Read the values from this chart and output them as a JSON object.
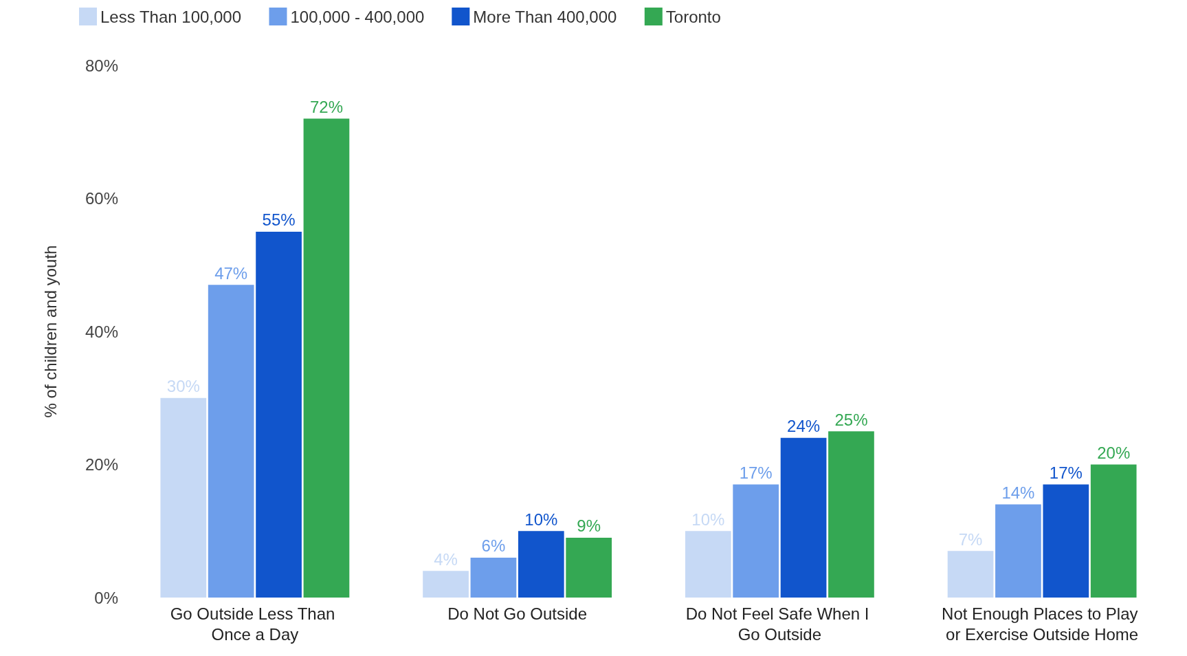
{
  "chart_data": {
    "type": "bar",
    "ylabel": "% of children and youth",
    "categories": [
      "Go Outside Less Than Once a Day",
      "Do Not Go Outside",
      "Do Not Feel Safe When I Go Outside",
      "Not Enough Places to Play or Exercise Outside Home"
    ],
    "series": [
      {
        "name": "Less Than 100,000",
        "color": "#c6d9f5",
        "values": [
          30,
          4,
          10,
          7
        ],
        "value_labels": [
          "30%",
          "4%",
          "10%",
          "7%"
        ]
      },
      {
        "name": "100,000 - 400,000",
        "color": "#6d9eeb",
        "values": [
          47,
          6,
          17,
          14
        ],
        "value_labels": [
          "47%",
          "6%",
          "17%",
          "14%"
        ]
      },
      {
        "name": "More Than 400,000",
        "color": "#1155cc",
        "values": [
          55,
          10,
          24,
          17
        ],
        "value_labels": [
          "55%",
          "10%",
          "24%",
          "17%"
        ]
      },
      {
        "name": "Toronto",
        "color": "#34a853",
        "values": [
          72,
          9,
          25,
          20
        ],
        "value_labels": [
          "72%",
          "9%",
          "25%",
          "20%"
        ]
      }
    ],
    "ylim": [
      0,
      80
    ],
    "yticks": [
      {
        "value": 0,
        "label": "0%"
      },
      {
        "value": 20,
        "label": "20%"
      },
      {
        "value": 40,
        "label": "40%"
      },
      {
        "value": 60,
        "label": "60%"
      },
      {
        "value": 80,
        "label": "80%"
      }
    ],
    "grid": false,
    "legend": "top left"
  }
}
